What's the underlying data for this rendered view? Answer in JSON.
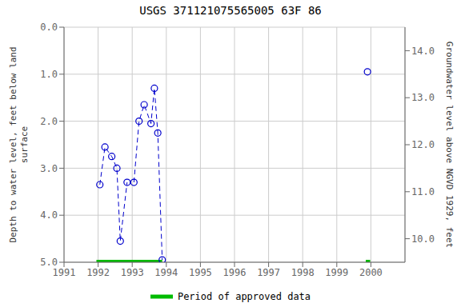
{
  "chart_data": {
    "type": "line",
    "title": "USGS 371121075565005 63F 86",
    "ylabel": "Depth to water level, feet below land\nsurface",
    "y2label": "Groundwater level above NGVD 1929, feet",
    "xlim": [
      1991,
      2001
    ],
    "xticks": [
      1991,
      1992,
      1993,
      1994,
      1995,
      1996,
      1997,
      1998,
      1999,
      2000
    ],
    "ylim": [
      5.0,
      0.0
    ],
    "yticks": [
      {
        "value": 0.0,
        "label": "0.0"
      },
      {
        "value": 1.0,
        "label": "1.0"
      },
      {
        "value": 2.0,
        "label": "2.0"
      },
      {
        "value": 3.0,
        "label": "3.0"
      },
      {
        "value": 4.0,
        "label": "4.0"
      },
      {
        "value": 5.0,
        "label": "5.0"
      }
    ],
    "y2lim": [
      9.5,
      14.5
    ],
    "y2ticks": [
      {
        "value": 14.0,
        "label": "14.0"
      },
      {
        "value": 13.0,
        "label": "13.0"
      },
      {
        "value": 12.0,
        "label": "12.0"
      },
      {
        "value": 11.0,
        "label": "11.0"
      },
      {
        "value": 10.0,
        "label": "10.0"
      }
    ],
    "grid": true,
    "legend": "bottom",
    "series": [
      {
        "x": [
          1992.05,
          1992.2,
          1992.4,
          1992.55,
          1992.65,
          1992.85
        ],
        "values": [
          3.35,
          2.55,
          2.75,
          3.0,
          4.55,
          3.3
        ],
        "color": "#0000cc",
        "line_style": "dashed",
        "marker": "o"
      },
      {
        "x": [
          1993.05,
          1993.2,
          1993.35,
          1993.55,
          1993.65,
          1993.75,
          1993.88
        ],
        "values": [
          3.3,
          2.0,
          1.65,
          2.05,
          1.3,
          2.25,
          4.95
        ],
        "color": "#0000cc",
        "line_style": "dashed",
        "marker": "o"
      },
      {
        "x": [
          1999.9
        ],
        "values": [
          0.95
        ],
        "color": "#0000cc",
        "line_style": "none",
        "marker": "o"
      },
      {
        "name": "Period of approved data",
        "x": [
          1991.95,
          1993.88
        ],
        "values": [
          5.0,
          5.0
        ],
        "color": "#00bb00",
        "line_style": "solid",
        "marker": "none"
      },
      {
        "x": [
          1999.85,
          1999.98
        ],
        "values": [
          5.0,
          5.0
        ],
        "color": "#00bb00",
        "line_style": "solid",
        "marker": "none"
      }
    ]
  }
}
